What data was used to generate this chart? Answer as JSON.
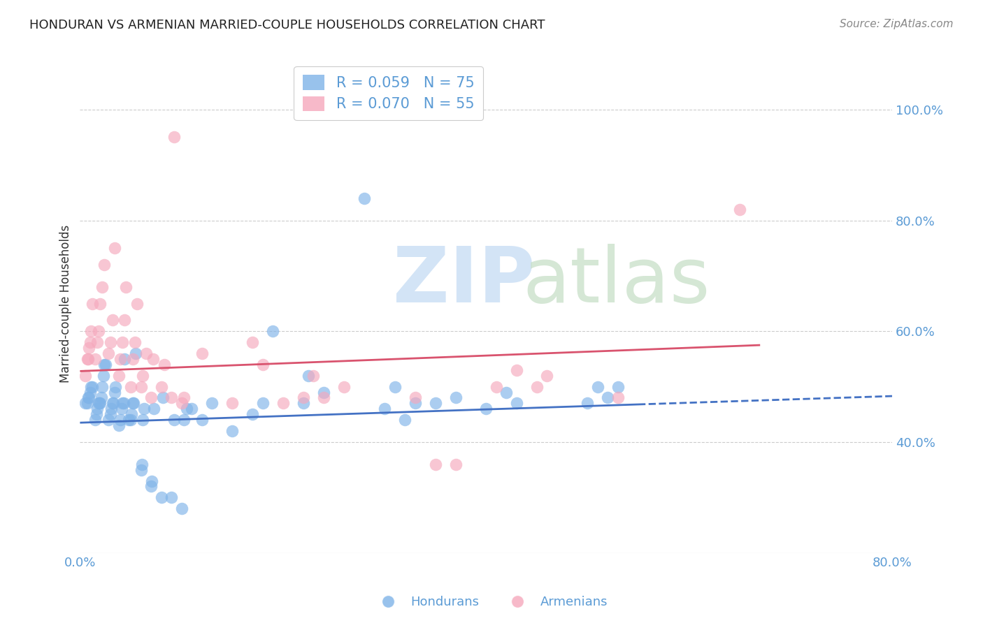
{
  "title": "HONDURAN VS ARMENIAN MARRIED-COUPLE HOUSEHOLDS CORRELATION CHART",
  "source": "Source: ZipAtlas.com",
  "ylabel": "Married-couple Households",
  "xlim": [
    0.0,
    0.8
  ],
  "ylim": [
    0.2,
    1.1
  ],
  "ytick_vals": [
    0.4,
    0.6,
    0.8,
    1.0
  ],
  "ytick_labels": [
    "40.0%",
    "60.0%",
    "80.0%",
    "100.0%"
  ],
  "xtick_vals": [
    0.0,
    0.1,
    0.2,
    0.3,
    0.4,
    0.5,
    0.6,
    0.7,
    0.8
  ],
  "xtick_labels": [
    "0.0%",
    "",
    "",
    "",
    "",
    "",
    "",
    "",
    "80.0%"
  ],
  "legend_r1": "R = 0.059   N = 75",
  "legend_r2": "R = 0.070   N = 55",
  "blue_scatter": "#7fb3e8",
  "pink_scatter": "#f5a8bc",
  "trend_blue": "#4472c4",
  "trend_pink": "#d9536e",
  "axis_color": "#5b9bd5",
  "grid_color": "#cccccc",
  "background_color": "#ffffff",
  "watermark_zip_color": "#cce0f5",
  "watermark_atlas_color": "#c8dfc8",
  "title_color": "#222222",
  "source_color": "#888888",
  "ylabel_color": "#333333",
  "hondurans_x": [
    0.005,
    0.007,
    0.008,
    0.009,
    0.01,
    0.011,
    0.012,
    0.015,
    0.016,
    0.017,
    0.018,
    0.019,
    0.02,
    0.021,
    0.022,
    0.023,
    0.024,
    0.025,
    0.028,
    0.03,
    0.031,
    0.032,
    0.033,
    0.034,
    0.035,
    0.038,
    0.04,
    0.041,
    0.042,
    0.043,
    0.044,
    0.048,
    0.05,
    0.051,
    0.052,
    0.053,
    0.055,
    0.06,
    0.061,
    0.062,
    0.063,
    0.07,
    0.071,
    0.073,
    0.08,
    0.082,
    0.09,
    0.093,
    0.1,
    0.102,
    0.105,
    0.11,
    0.12,
    0.13,
    0.15,
    0.17,
    0.18,
    0.19,
    0.22,
    0.225,
    0.24,
    0.28,
    0.3,
    0.31,
    0.32,
    0.33,
    0.35,
    0.37,
    0.4,
    0.42,
    0.43,
    0.5,
    0.51,
    0.52,
    0.53
  ],
  "hondurans_y": [
    0.47,
    0.47,
    0.48,
    0.48,
    0.49,
    0.5,
    0.5,
    0.44,
    0.45,
    0.46,
    0.47,
    0.47,
    0.47,
    0.48,
    0.5,
    0.52,
    0.54,
    0.54,
    0.44,
    0.45,
    0.46,
    0.47,
    0.47,
    0.49,
    0.5,
    0.43,
    0.44,
    0.46,
    0.47,
    0.47,
    0.55,
    0.44,
    0.44,
    0.45,
    0.47,
    0.47,
    0.56,
    0.35,
    0.36,
    0.44,
    0.46,
    0.32,
    0.33,
    0.46,
    0.3,
    0.48,
    0.3,
    0.44,
    0.28,
    0.44,
    0.46,
    0.46,
    0.44,
    0.47,
    0.42,
    0.45,
    0.47,
    0.6,
    0.47,
    0.52,
    0.49,
    0.84,
    0.46,
    0.5,
    0.44,
    0.47,
    0.47,
    0.48,
    0.46,
    0.49,
    0.47,
    0.47,
    0.5,
    0.48,
    0.5
  ],
  "armenians_x": [
    0.005,
    0.007,
    0.008,
    0.009,
    0.01,
    0.011,
    0.012,
    0.015,
    0.017,
    0.018,
    0.02,
    0.022,
    0.024,
    0.028,
    0.03,
    0.032,
    0.034,
    0.038,
    0.04,
    0.042,
    0.044,
    0.045,
    0.05,
    0.052,
    0.054,
    0.056,
    0.06,
    0.062,
    0.065,
    0.07,
    0.072,
    0.08,
    0.083,
    0.09,
    0.093,
    0.1,
    0.102,
    0.12,
    0.15,
    0.17,
    0.18,
    0.2,
    0.22,
    0.23,
    0.24,
    0.26,
    0.33,
    0.35,
    0.37,
    0.41,
    0.43,
    0.45,
    0.46,
    0.53,
    0.65
  ],
  "armenians_y": [
    0.52,
    0.55,
    0.55,
    0.57,
    0.58,
    0.6,
    0.65,
    0.55,
    0.58,
    0.6,
    0.65,
    0.68,
    0.72,
    0.56,
    0.58,
    0.62,
    0.75,
    0.52,
    0.55,
    0.58,
    0.62,
    0.68,
    0.5,
    0.55,
    0.58,
    0.65,
    0.5,
    0.52,
    0.56,
    0.48,
    0.55,
    0.5,
    0.54,
    0.48,
    0.95,
    0.47,
    0.48,
    0.56,
    0.47,
    0.58,
    0.54,
    0.47,
    0.48,
    0.52,
    0.48,
    0.5,
    0.48,
    0.36,
    0.36,
    0.5,
    0.53,
    0.5,
    0.52,
    0.48,
    0.82
  ],
  "blue_trend_x_start": 0.0,
  "blue_trend_x_solid_end": 0.55,
  "blue_trend_x_dash_end": 0.8,
  "blue_trend_y_start": 0.435,
  "blue_trend_y_solid_end": 0.468,
  "blue_trend_y_dash_end": 0.483,
  "pink_trend_x_start": 0.0,
  "pink_trend_x_end": 0.67,
  "pink_trend_y_start": 0.528,
  "pink_trend_y_end": 0.575
}
